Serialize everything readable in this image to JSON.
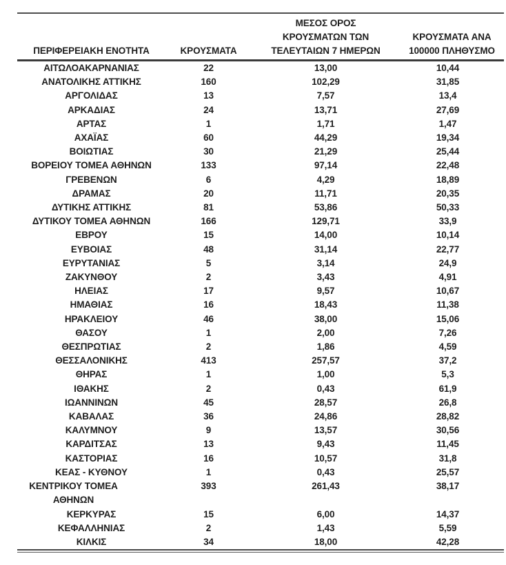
{
  "colors": {
    "text": "#1d1d1d",
    "rule": "#4d4d4d",
    "background": "#ffffff"
  },
  "chart_data": {
    "type": "table",
    "columns": [
      "ΠΕΡΙΦΕΡΕΙΑΚΗ ΕΝΟΤΗΤΑ",
      "ΚΡΟΥΣΜΑΤΑ",
      "ΜΕΣΟΣ ΟΡΟΣ ΚΡΟΥΣΜΑΤΩΝ ΤΩΝ ΤΕΛΕΥΤΑΙΩΝ 7 ΗΜΕΡΩΝ",
      "ΚΡΟΥΣΜΑΤΑ ΑΝΑ 100000 ΠΛΗΘΥΣΜΟ"
    ],
    "header_display": {
      "region": "ΠΕΡΙΦΕΡΕΙΑΚΗ ΕΝΟΤΗΤΑ",
      "cases": "ΚΡΟΥΣΜΑΤΑ",
      "avg7": "ΜΕΣΟΣ ΟΡΟΣ\nΚΡΟΥΣΜΑΤΩΝ ΤΩΝ\nΤΕΛΕΥΤΑΙΩΝ 7 ΗΜΕΡΩΝ",
      "per100k": "ΚΡΟΥΣΜΑΤΑ ΑΝΑ\n100000 ΠΛΗΘΥΣΜΟ"
    },
    "rows": [
      [
        "ΑΙΤΩΛΟΑΚΑΡΝΑΝΙΑΣ",
        "22",
        "13,00",
        "10,44"
      ],
      [
        "ΑΝΑΤΟΛΙΚΗΣ ΑΤΤΙΚΗΣ",
        "160",
        "102,29",
        "31,85"
      ],
      [
        "ΑΡΓΟΛΙΔΑΣ",
        "13",
        "7,57",
        "13,4"
      ],
      [
        "ΑΡΚΑΔΙΑΣ",
        "24",
        "13,71",
        "27,69"
      ],
      [
        "ΑΡΤΑΣ",
        "1",
        "1,71",
        "1,47"
      ],
      [
        "ΑΧΑΪΑΣ",
        "60",
        "44,29",
        "19,34"
      ],
      [
        "ΒΟΙΩΤΙΑΣ",
        "30",
        "21,29",
        "25,44"
      ],
      [
        "ΒΟΡΕΙΟΥ ΤΟΜΕΑ ΑΘΗΝΩΝ",
        "133",
        "97,14",
        "22,48"
      ],
      [
        "ΓΡΕΒΕΝΩΝ",
        "6",
        "4,29",
        "18,89"
      ],
      [
        "ΔΡΑΜΑΣ",
        "20",
        "11,71",
        "20,35"
      ],
      [
        "ΔΥΤΙΚΗΣ ΑΤΤΙΚΗΣ",
        "81",
        "53,86",
        "50,33"
      ],
      [
        "ΔΥΤΙΚΟΥ ΤΟΜΕΑ ΑΘΗΝΩΝ",
        "166",
        "129,71",
        "33,9"
      ],
      [
        "ΕΒΡΟΥ",
        "15",
        "14,00",
        "10,14"
      ],
      [
        "ΕΥΒΟΙΑΣ",
        "48",
        "31,14",
        "22,77"
      ],
      [
        "ΕΥΡΥΤΑΝΙΑΣ",
        "5",
        "3,14",
        "24,9"
      ],
      [
        "ΖΑΚΥΝΘΟΥ",
        "2",
        "3,43",
        "4,91"
      ],
      [
        "ΗΛΕΙΑΣ",
        "17",
        "9,57",
        "10,67"
      ],
      [
        "ΗΜΑΘΙΑΣ",
        "16",
        "18,43",
        "11,38"
      ],
      [
        "ΗΡΑΚΛΕΙΟΥ",
        "46",
        "38,00",
        "15,06"
      ],
      [
        "ΘΑΣΟΥ",
        "1",
        "2,00",
        "7,26"
      ],
      [
        "ΘΕΣΠΡΩΤΙΑΣ",
        "2",
        "1,86",
        "4,59"
      ],
      [
        "ΘΕΣΣΑΛΟΝΙΚΗΣ",
        "413",
        "257,57",
        "37,2"
      ],
      [
        "ΘΗΡΑΣ",
        "1",
        "1,00",
        "5,3"
      ],
      [
        "ΙΘΑΚΗΣ",
        "2",
        "0,43",
        "61,9"
      ],
      [
        "ΙΩΑΝΝΙΝΩΝ",
        "45",
        "28,57",
        "26,8"
      ],
      [
        "ΚΑΒΑΛΑΣ",
        "36",
        "24,86",
        "28,82"
      ],
      [
        "ΚΑΛΥΜΝΟΥ",
        "9",
        "13,57",
        "30,56"
      ],
      [
        "ΚΑΡΔΙΤΣΑΣ",
        "13",
        "9,43",
        "11,45"
      ],
      [
        "ΚΑΣΤΟΡΙΑΣ",
        "16",
        "10,57",
        "31,8"
      ],
      [
        "ΚΕΑΣ - ΚΥΘΝΟΥ",
        "1",
        "0,43",
        "25,57"
      ],
      [
        "ΚΕΝΤΡΙΚΟΥ ΤΟΜΕΑ\nΑΘΗΝΩΝ",
        "393",
        "261,43",
        "38,17"
      ],
      [
        "ΚΕΡΚΥΡΑΣ",
        "15",
        "6,00",
        "14,37"
      ],
      [
        "ΚΕΦΑΛΛΗΝΙΑΣ",
        "2",
        "1,43",
        "5,59"
      ],
      [
        "ΚΙΛΚΙΣ",
        "34",
        "18,00",
        "42,28"
      ]
    ]
  }
}
